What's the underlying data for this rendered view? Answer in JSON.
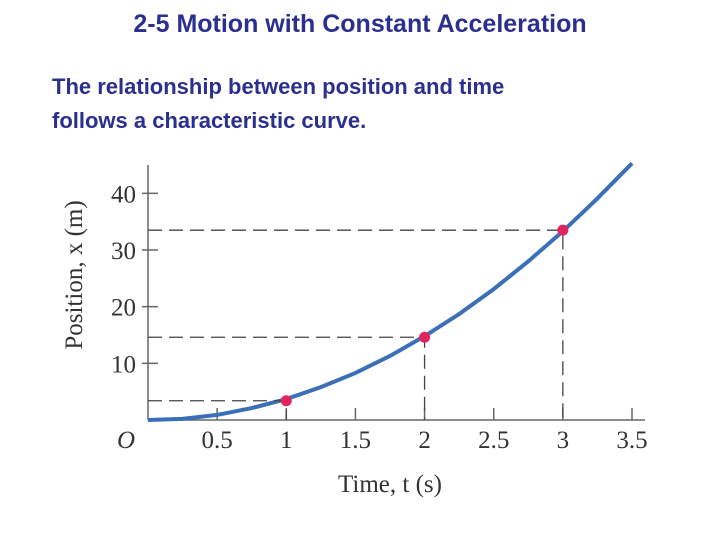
{
  "header": {
    "title": "2-5 Motion with Constant Acceleration",
    "text": [
      "The relationship between position and time",
      "follows a characteristic curve."
    ]
  },
  "chart_data": {
    "type": "line",
    "xlabel": "Time, t (s)",
    "ylabel": "Position, x (m)",
    "xlim": [
      0,
      3.5
    ],
    "ylim": [
      0,
      45
    ],
    "xticks": [
      {
        "value": 0,
        "label": "O"
      },
      0.5,
      1,
      1.5,
      2,
      2.5,
      3,
      3.5
    ],
    "yticks": [
      10,
      20,
      30,
      40
    ],
    "curve": {
      "color": "#3b70b8",
      "x": [
        0,
        0.25,
        0.5,
        0.75,
        1,
        1.25,
        1.5,
        1.75,
        2,
        2.25,
        2.5,
        2.75,
        3,
        3.25,
        3.5
      ],
      "values": [
        0,
        0.2,
        0.9,
        2.1,
        3.7,
        5.8,
        8.3,
        11.3,
        14.8,
        18.7,
        23.1,
        28.0,
        33.3,
        39.1,
        45.3
      ]
    },
    "points": {
      "color": "#e0245e",
      "x": [
        1,
        2,
        3
      ],
      "values": [
        3.4,
        14.6,
        33.5
      ]
    }
  }
}
